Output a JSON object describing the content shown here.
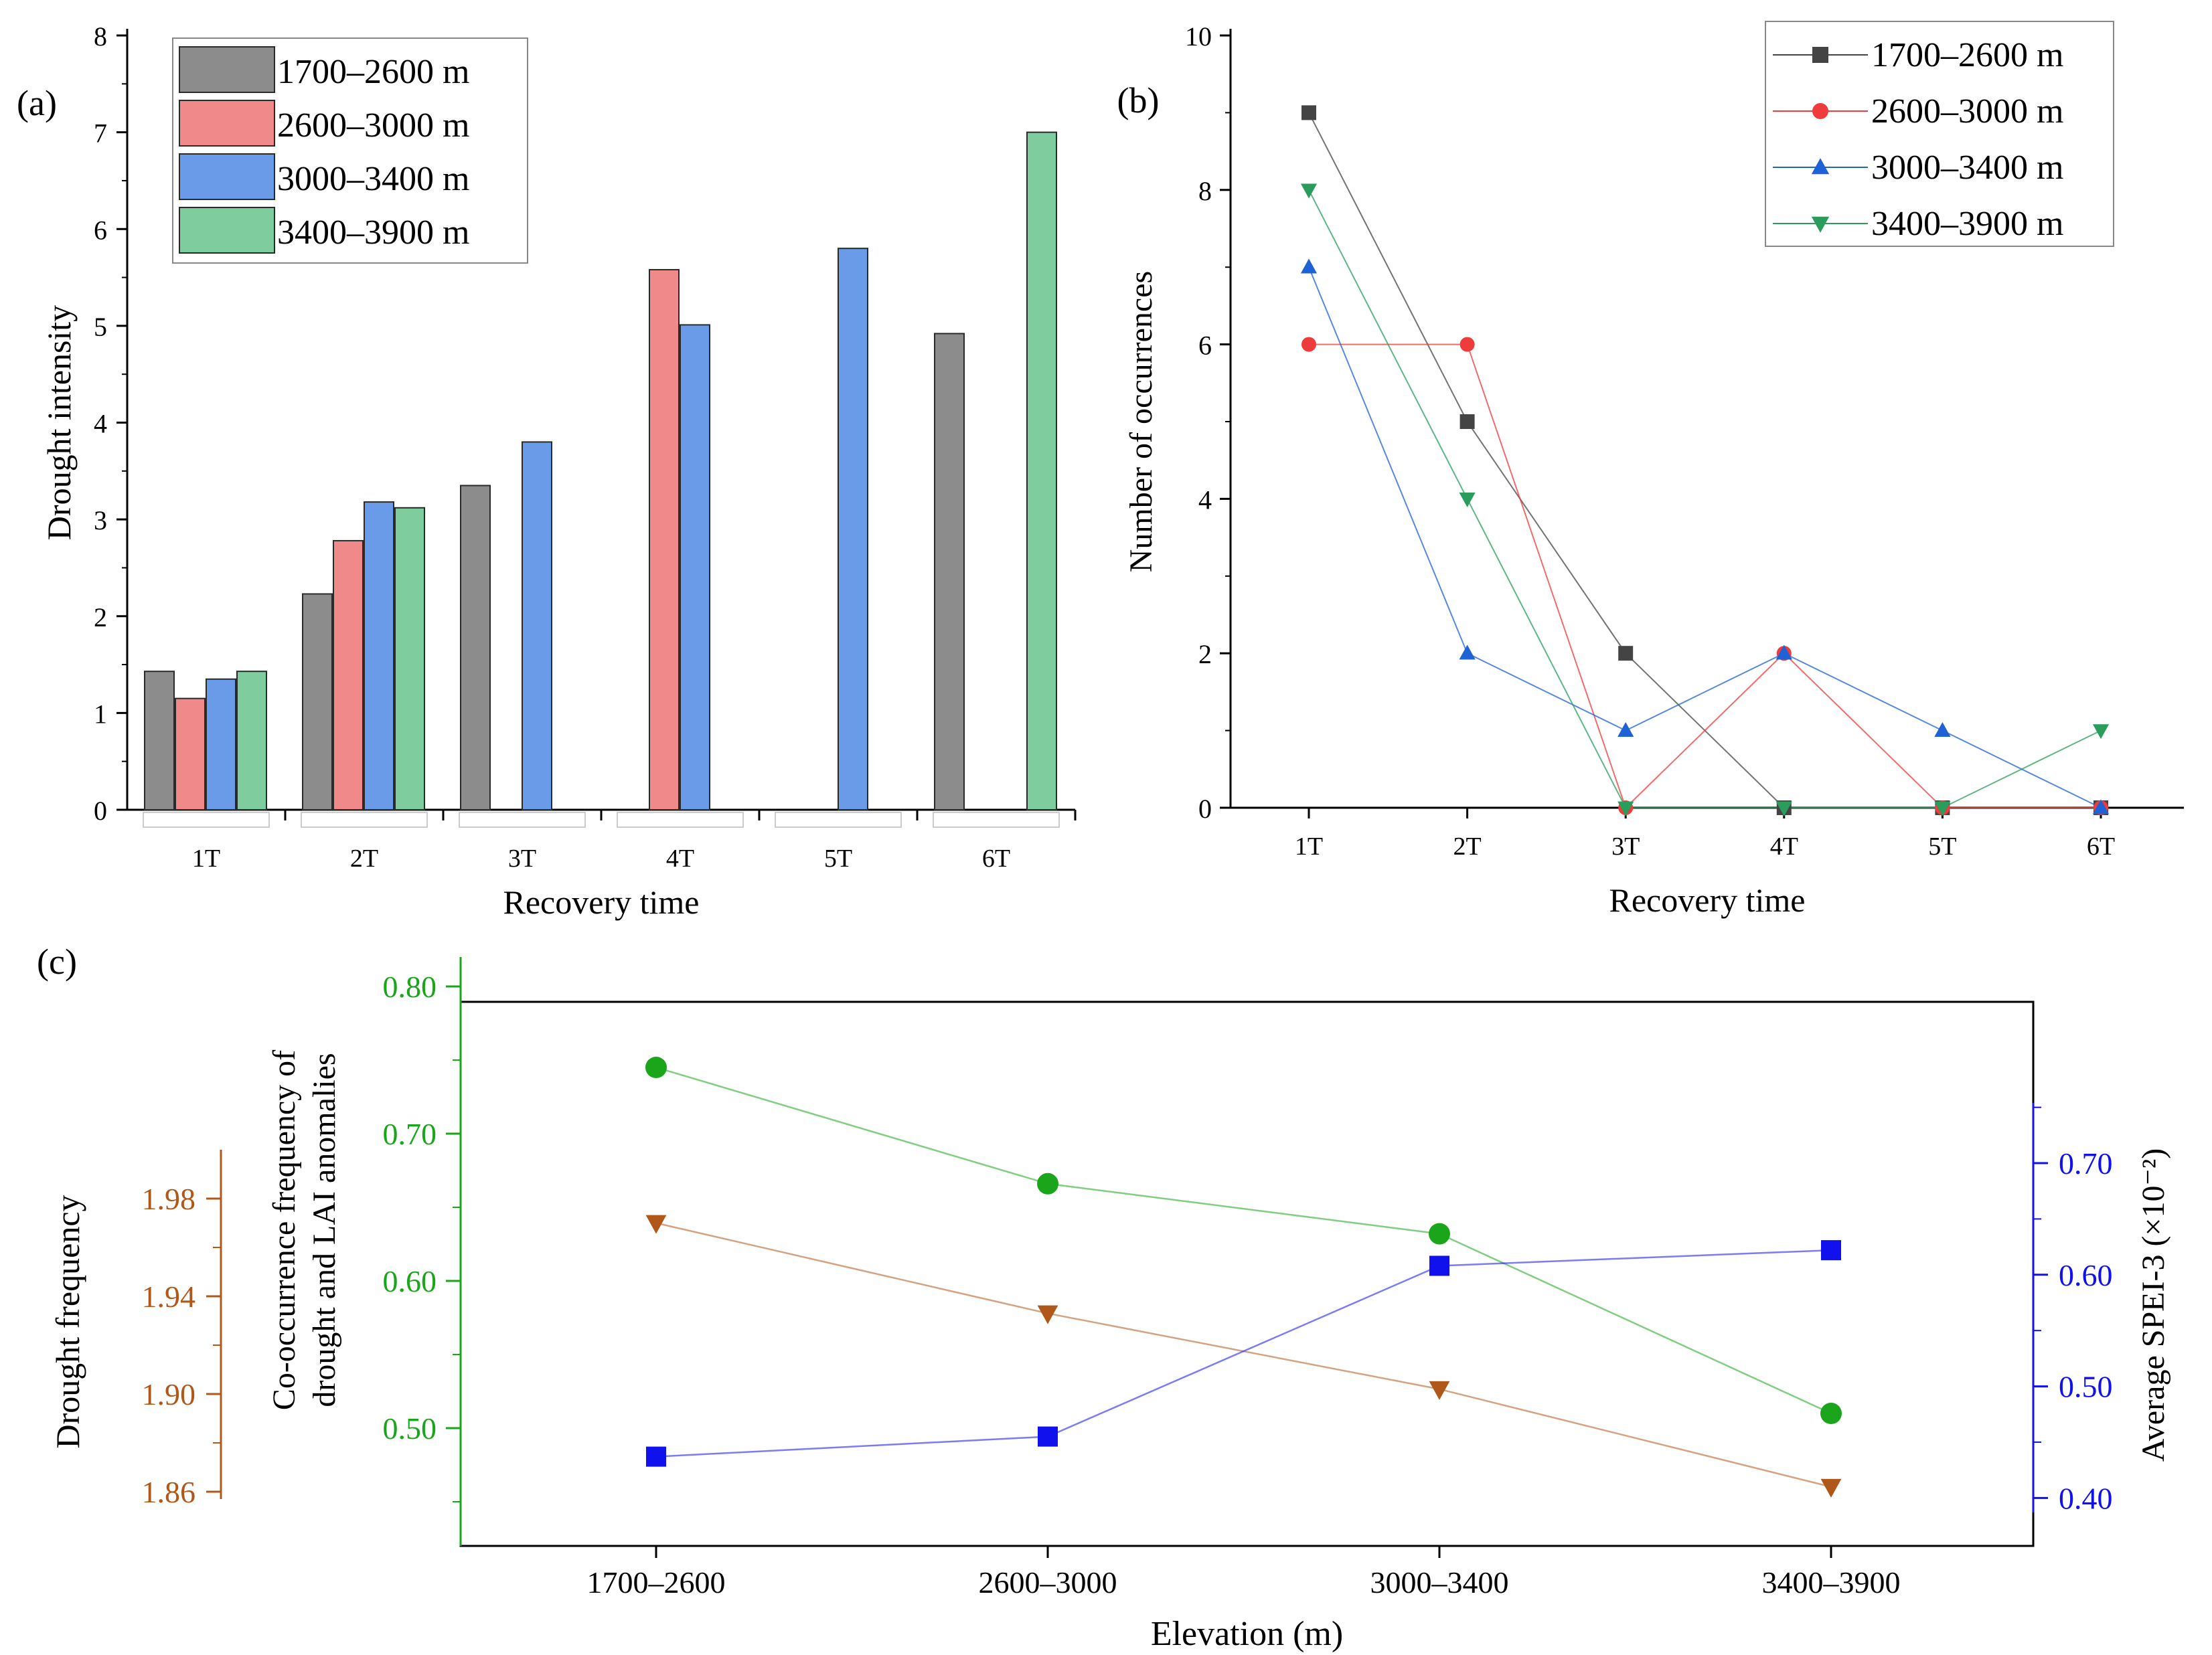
{
  "colors": {
    "black": "#000000",
    "gray": "#8c8c8c",
    "red": "#f08a8a",
    "blue": "#6a9be8",
    "green": "#7fcc9e",
    "line_gray": "#444444",
    "line_red": "#ee3b3b",
    "line_blue": "#1f62d6",
    "line_green": "#2a9d5c",
    "c_green": "#1aa51a",
    "c_brown": "#b0581a",
    "c_blue": "#1111ee"
  },
  "chart_data": [
    {
      "id": "a",
      "panel_label": "(a)",
      "type": "bar",
      "title": "",
      "xlabel": "Recovery time",
      "ylabel": "Drought intensity",
      "ylim": [
        0,
        8
      ],
      "yticks": [
        "0",
        "1",
        "2",
        "3",
        "4",
        "5",
        "6",
        "7",
        "8"
      ],
      "categories": [
        "1T",
        "2T",
        "3T",
        "4T",
        "5T",
        "6T"
      ],
      "legend_position": "top-left",
      "series": [
        {
          "name": "1700–2600 m",
          "color": "#8c8c8c",
          "values": [
            1.43,
            2.23,
            3.35,
            0,
            0,
            4.92
          ]
        },
        {
          "name": "2600–3000 m",
          "color": "#f08a8a",
          "values": [
            1.15,
            2.78,
            0,
            5.58,
            0,
            0
          ]
        },
        {
          "name": "3000–3400 m",
          "color": "#6a9be8",
          "values": [
            1.35,
            3.18,
            3.8,
            5.01,
            5.8,
            0
          ]
        },
        {
          "name": "3400–3900 m",
          "color": "#7fcc9e",
          "values": [
            1.43,
            3.12,
            0,
            0,
            0,
            7.0
          ]
        }
      ]
    },
    {
      "id": "b",
      "panel_label": "(b)",
      "type": "line",
      "title": "",
      "xlabel": "Recovery time",
      "ylabel": "Number of occurrences",
      "ylim": [
        0,
        10
      ],
      "yticks": [
        "0",
        "2",
        "4",
        "6",
        "8",
        "10"
      ],
      "categories": [
        "1T",
        "2T",
        "3T",
        "4T",
        "5T",
        "6T"
      ],
      "legend_position": "top-right",
      "series": [
        {
          "name": "1700–2600 m",
          "color": "#444444",
          "marker": "square",
          "values": [
            9,
            5,
            2,
            0,
            0,
            0
          ]
        },
        {
          "name": "2600–3000 m",
          "color": "#ee3b3b",
          "marker": "circle",
          "values": [
            6,
            6,
            0,
            2,
            0,
            0
          ]
        },
        {
          "name": "3000–3400 m",
          "color": "#1f62d6",
          "marker": "triangle-up",
          "values": [
            7,
            2,
            1,
            2,
            1,
            0
          ]
        },
        {
          "name": "3400–3900 m",
          "color": "#2a9d5c",
          "marker": "triangle-down",
          "values": [
            8,
            4,
            0,
            0,
            0,
            1
          ]
        }
      ]
    },
    {
      "id": "c",
      "panel_label": "(c)",
      "type": "line",
      "title": "",
      "xlabel": "Elevation (m)",
      "categories": [
        "1700–2600",
        "2600–3000",
        "3000–3400",
        "3400–3900"
      ],
      "axes": {
        "drought_frequency": {
          "label": "Drought frequency",
          "ylim": [
            1.857,
            2.0
          ],
          "ticks": [
            "1.86",
            "1.90",
            "1.94",
            "1.98"
          ]
        },
        "co_occurrence": {
          "label_line1": "Co-occurrence frequency of",
          "label_line2": "drought and LAI anomalies",
          "ylim": [
            0.42,
            0.82
          ],
          "ticks": [
            "0.50",
            "0.60",
            "0.70",
            "0.80"
          ]
        },
        "spei": {
          "label": "Average SPEI-3 (×10⁻²)",
          "ylim": [
            0.387,
            0.754
          ],
          "ticks": [
            "0.40",
            "0.50",
            "0.60",
            "0.70"
          ]
        }
      },
      "series": [
        {
          "name": "Co-occurrence frequency of drought and LAI anomalies",
          "axis": "co_occurrence",
          "color": "#1aa51a",
          "marker": "circle",
          "values": [
            0.745,
            0.666,
            0.632,
            0.51
          ]
        },
        {
          "name": "Drought frequency",
          "axis": "drought_frequency",
          "color": "#b0581a",
          "marker": "triangle-down",
          "values": [
            1.97,
            1.933,
            1.902,
            1.862
          ]
        },
        {
          "name": "Average SPEI-3",
          "axis": "spei",
          "color": "#1111ee",
          "marker": "square",
          "values": [
            0.437,
            0.455,
            0.608,
            0.622
          ]
        }
      ]
    }
  ]
}
